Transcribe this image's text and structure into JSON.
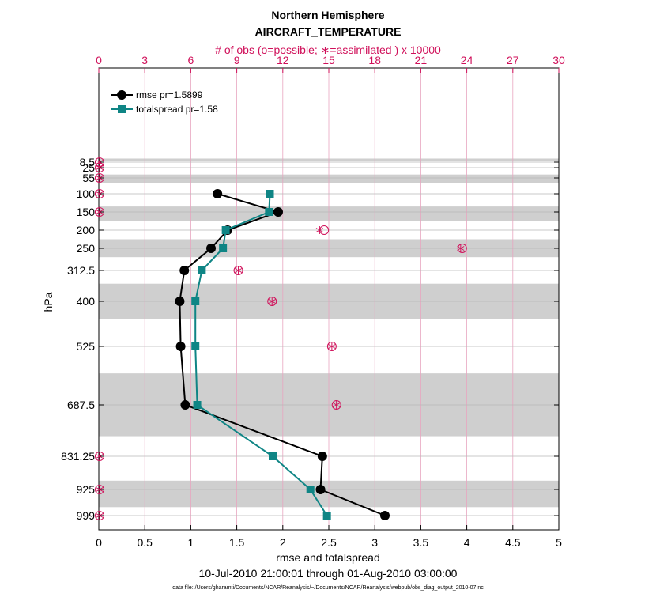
{
  "chart_data": {
    "type": "line",
    "title": "Northern Hemisphere",
    "subtitle": "AIRCRAFT_TEMPERATURE",
    "xlabel": "rmse and totalspread",
    "ylabel": "hPa",
    "top_xlabel": "# of obs (o=possible; ∗=assimilated ) x 10000",
    "xlim": [
      0,
      5
    ],
    "top_xlim": [
      0,
      30
    ],
    "x_ticks": [
      "0",
      "0.5",
      "1",
      "1.5",
      "2",
      "2.5",
      "3",
      "3.5",
      "4",
      "4.5",
      "5"
    ],
    "top_x_ticks": [
      "0",
      "3",
      "6",
      "9",
      "12",
      "15",
      "18",
      "21",
      "24",
      "27",
      "30"
    ],
    "y_ticks": [
      "8.5",
      "25",
      "55",
      "100",
      "150",
      "200",
      "250",
      "312.5",
      "400",
      "525",
      "687.5",
      "831.25",
      "925",
      "999"
    ],
    "levels": [
      8.5,
      25,
      55,
      100,
      150,
      200,
      250,
      312.5,
      400,
      525,
      687.5,
      831.25,
      925,
      999
    ],
    "shaded_bands": [
      [
        3,
        7
      ],
      [
        45,
        70
      ],
      [
        135,
        175
      ],
      [
        225,
        275
      ],
      [
        350,
        450
      ],
      [
        600,
        775
      ],
      [
        900,
        975
      ]
    ],
    "grid": true,
    "legend_position": "top-left",
    "series": [
      {
        "name": "rmse pr=1.5899",
        "color": "#000000",
        "marker": "circle",
        "levels": [
          100,
          150,
          200,
          250,
          312.5,
          400,
          525,
          687.5,
          831.25,
          925,
          999
        ],
        "values": [
          1.29,
          1.95,
          1.4,
          1.22,
          0.93,
          0.88,
          0.89,
          0.94,
          2.43,
          2.41,
          3.11
        ]
      },
      {
        "name": "totalspread pr=1.58",
        "color": "#0f8585",
        "marker": "square",
        "levels": [
          100,
          150,
          200,
          250,
          312.5,
          400,
          525,
          687.5,
          831.25,
          925,
          999
        ],
        "values": [
          1.86,
          1.85,
          1.38,
          1.35,
          1.12,
          1.05,
          1.05,
          1.07,
          1.89,
          2.3,
          2.48
        ]
      }
    ],
    "obs_counts": {
      "color": "#d0105a",
      "levels": [
        8.5,
        25,
        55,
        100,
        150,
        200,
        250,
        312.5,
        400,
        525,
        687.5,
        831.25,
        925,
        999
      ],
      "possible": [
        0.05,
        0.05,
        0.05,
        0.05,
        0.05,
        14.7,
        23.7,
        9.1,
        11.3,
        15.2,
        15.5,
        0.05,
        0.05,
        0.05
      ],
      "assimilated": [
        0.05,
        0.05,
        0.05,
        0.05,
        0.05,
        14.4,
        23.6,
        9.1,
        11.3,
        15.2,
        15.5,
        0.05,
        0.05,
        0.05
      ]
    },
    "time_range": "10-Jul-2010 21:00:01 through 01-Aug-2010 03:00:00",
    "data_file": "data file: /Users/gharamti/Documents/NCAR/Reanalysis/~/Documents/NCAR/Reanalysis/webpub/obs_diag_output_2010-07.nc"
  }
}
